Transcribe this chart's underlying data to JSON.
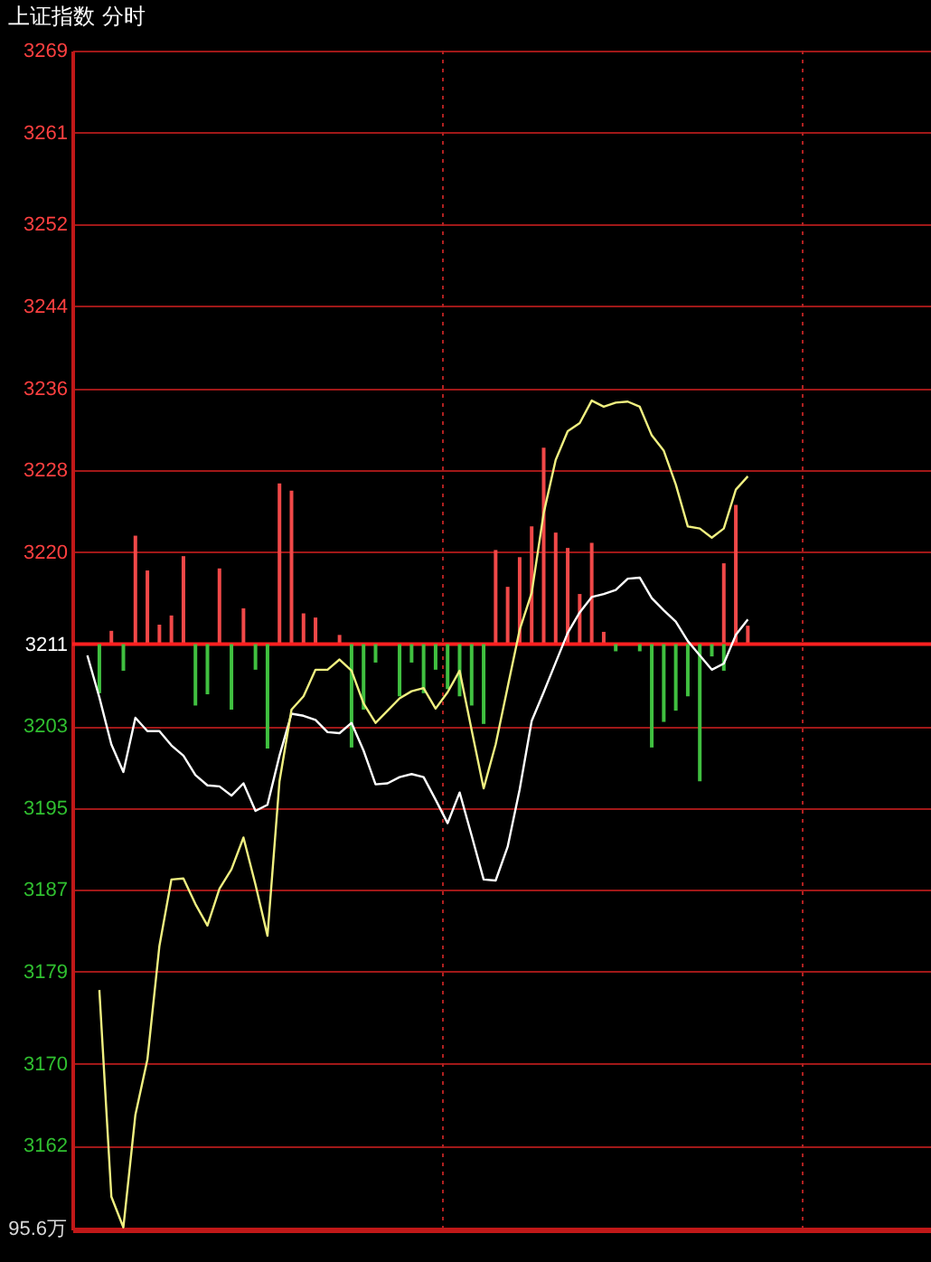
{
  "chart_data": {
    "type": "line",
    "title": "上证指数  分时",
    "annotations": [
      "95.6万"
    ],
    "categories": [
      null,
      null,
      null,
      null,
      null,
      null,
      null,
      null,
      null,
      null,
      null,
      null,
      null,
      null,
      null,
      null,
      null,
      null,
      null,
      null,
      null,
      null,
      null,
      null,
      null,
      null,
      null,
      null,
      null,
      null,
      null,
      null,
      null,
      null,
      null,
      null,
      null,
      null,
      null,
      null,
      null,
      null,
      null,
      null,
      null,
      null,
      null,
      null,
      null,
      null,
      null,
      null,
      null,
      null,
      null,
      null,
      null,
      null,
      null,
      null,
      null,
      null,
      null,
      null,
      null,
      null,
      null,
      null,
      null,
      null
    ],
    "ylim": [
      3153.8,
      3269
    ],
    "yticks": [
      3269,
      3261,
      3252,
      3244,
      3236,
      3228,
      3220,
      3211,
      3203,
      3195,
      3187,
      3179,
      3170,
      3162
    ],
    "tick_labels": "y",
    "grid": "y",
    "ref_lines": [
      {
        "axis": "y",
        "value": 3211,
        "color": "#ff2020"
      }
    ],
    "series": [
      {
        "type": "bar",
        "color": "#f04848",
        "base": [
          null,
          null,
          3211,
          null,
          3211,
          3211,
          3211,
          3211,
          3211,
          null,
          null,
          3211,
          null,
          3211,
          null,
          null,
          3211,
          3211,
          3211,
          3211,
          null,
          3211,
          null,
          null,
          null,
          null,
          null,
          null,
          null,
          null,
          null,
          null,
          null,
          null,
          3211,
          3211,
          3211,
          3211,
          3211,
          3211,
          3211,
          3211,
          3211,
          3211,
          null,
          null,
          null,
          null,
          null,
          null,
          null,
          null,
          null,
          3211,
          3211,
          3211,
          null,
          null,
          null,
          null,
          null,
          null,
          null,
          null,
          null,
          null,
          null,
          null,
          null,
          null
        ],
        "values": [
          null,
          null,
          1.3,
          null,
          10.6,
          7.2,
          1.9,
          2.8,
          8.6,
          null,
          null,
          7.4,
          null,
          3.5,
          null,
          null,
          15.7,
          15.0,
          3.0,
          2.6,
          null,
          0.9,
          null,
          null,
          null,
          null,
          null,
          null,
          null,
          null,
          null,
          null,
          null,
          null,
          9.2,
          5.6,
          8.5,
          11.5,
          19.2,
          10.9,
          9.4,
          4.9,
          9.9,
          1.2,
          null,
          null,
          null,
          null,
          null,
          null,
          null,
          null,
          null,
          7.9,
          13.6,
          1.8,
          null,
          null,
          null,
          null,
          null,
          null,
          null,
          null,
          null,
          null,
          null,
          null,
          null,
          null
        ]
      },
      {
        "type": "bar",
        "color": "#40c040",
        "base": [
          null,
          3211,
          null,
          3211,
          null,
          null,
          null,
          null,
          null,
          3211,
          3211,
          null,
          3211,
          null,
          3211,
          3211,
          null,
          null,
          null,
          null,
          null,
          null,
          3211,
          3211,
          3211,
          null,
          3211,
          3211,
          3211,
          3211,
          3211,
          3211,
          3211,
          3211,
          null,
          null,
          null,
          null,
          null,
          null,
          null,
          null,
          null,
          null,
          3211,
          null,
          3211,
          3211,
          3211,
          3211,
          3211,
          3211,
          3211,
          3211,
          null,
          null,
          null,
          null,
          null,
          null,
          null,
          null,
          null,
          null,
          null,
          null,
          null,
          null,
          null,
          null
        ],
        "values": [
          null,
          -4.8,
          null,
          -2.6,
          null,
          null,
          null,
          null,
          null,
          -6.0,
          -4.9,
          null,
          -6.4,
          null,
          -2.5,
          -10.2,
          null,
          null,
          null,
          null,
          null,
          null,
          -10.1,
          -6.4,
          -1.8,
          null,
          -5.1,
          -1.8,
          -4.8,
          -2.5,
          -4.4,
          -5.1,
          -6.0,
          -7.8,
          null,
          null,
          null,
          null,
          null,
          null,
          null,
          null,
          null,
          null,
          -0.7,
          null,
          -0.7,
          -10.1,
          -7.6,
          -6.5,
          -5.1,
          -13.4,
          -1.2,
          -2.6,
          null,
          null,
          null,
          null,
          null,
          null,
          null,
          null,
          null,
          null,
          null,
          null,
          null,
          null,
          null,
          null
        ]
      },
      {
        "color": "#ffffff",
        "values": [
          3209.9,
          3205.8,
          3201.2,
          3198.5,
          3203.8,
          3202.5,
          3202.5,
          3201.1,
          3200.1,
          3198.2,
          3197.2,
          3197.1,
          3196.2,
          3197.4,
          3194.7,
          3195.3,
          3200.1,
          3204.2,
          3204.0,
          3203.6,
          3202.4,
          3202.3,
          3203.3,
          3200.6,
          3197.3,
          3197.4,
          3198.0,
          3198.3,
          3198.0,
          3195.8,
          3193.5,
          3196.5,
          3192.3,
          3188.0,
          3187.9,
          3191.2,
          3196.8,
          3203.5,
          3206.3,
          3209.2,
          3212.1,
          3214.1,
          3215.6,
          3215.9,
          3216.3,
          3217.4,
          3217.5,
          3215.5,
          3214.3,
          3213.2,
          3211.3,
          3209.9,
          3208.5,
          3209.1,
          3211.9,
          3213.4,
          null,
          null,
          null,
          null,
          null,
          null,
          null,
          null,
          null,
          null,
          null,
          null,
          null,
          null
        ]
      },
      {
        "color": "#f0f080",
        "values": [
          null,
          3177.2,
          3157.0,
          3154.0,
          3165.0,
          3170.4,
          3181.5,
          3188.0,
          3188.1,
          3185.6,
          3183.5,
          3187.1,
          3189.0,
          3192.1,
          3187.5,
          3182.5,
          3197.6,
          3204.6,
          3205.9,
          3208.5,
          3208.5,
          3209.5,
          3208.4,
          3205.2,
          3203.3,
          3204.5,
          3205.7,
          3206.4,
          3206.7,
          3204.7,
          3206.3,
          3208.4,
          3202.6,
          3196.9,
          3201.2,
          3206.8,
          3212.4,
          3216.0,
          3223.8,
          3229.0,
          3231.8,
          3232.6,
          3234.8,
          3234.2,
          3234.6,
          3234.7,
          3234.2,
          3231.4,
          3229.9,
          3226.6,
          3222.5,
          3222.3,
          3221.4,
          3222.3,
          3226.1,
          3227.4,
          null,
          null,
          null,
          null,
          null,
          null,
          null,
          null,
          null,
          null,
          null,
          null,
          null,
          null
        ]
      }
    ]
  }
}
